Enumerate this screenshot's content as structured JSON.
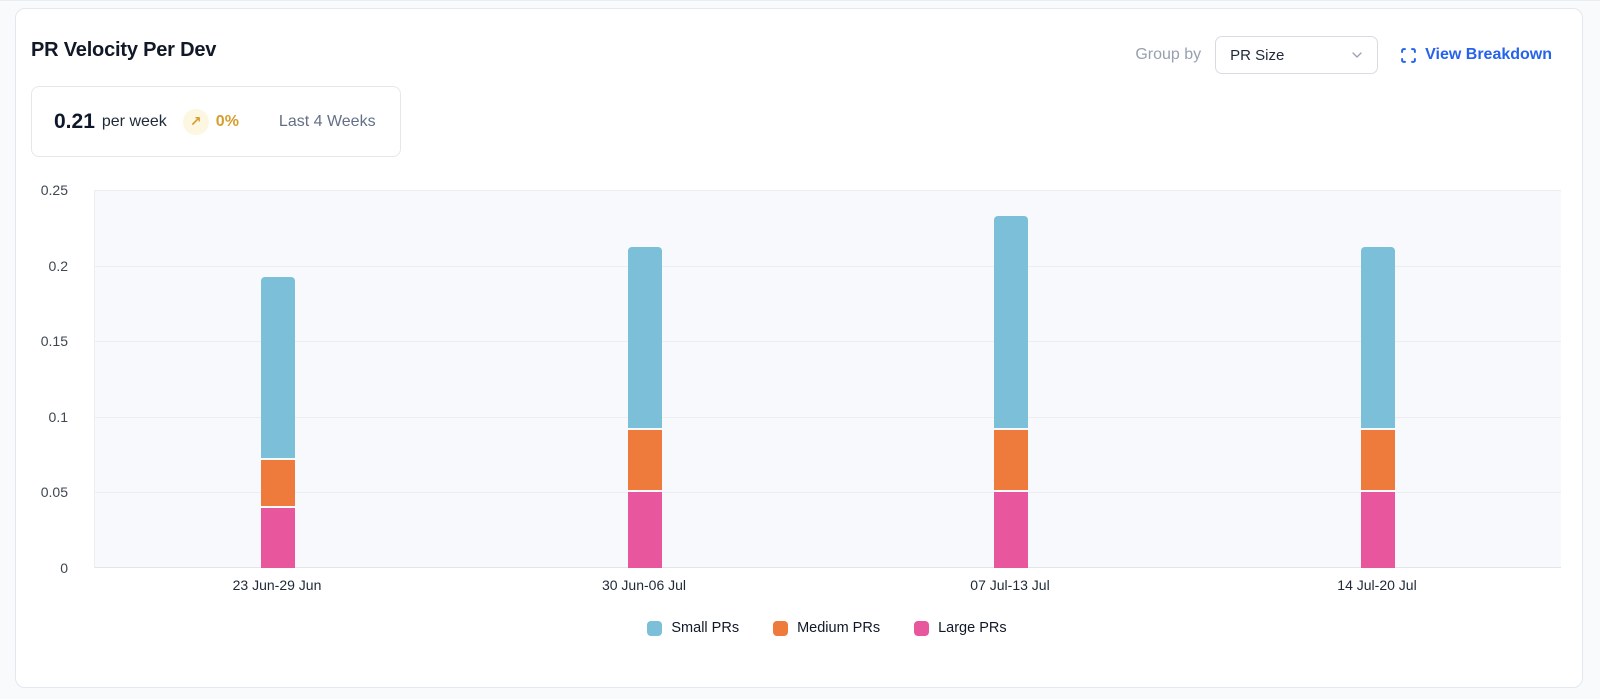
{
  "header": {
    "title": "PR Velocity Per Dev",
    "group_by_label": "Group by",
    "group_by_value": "PR Size",
    "view_breakdown_label": "View Breakdown",
    "accent_blue": "#2563eb"
  },
  "summary": {
    "value": "0.21",
    "unit": "per week",
    "trend_arrow": "↗",
    "trend_percent": "0%",
    "trend_color": "#d69e2e",
    "period": "Last 4 Weeks"
  },
  "chart_data": {
    "type": "bar",
    "stacked": true,
    "title": "PR Velocity Per Dev",
    "categories": [
      "23 Jun-29 Jun",
      "30 Jun-06 Jul",
      "07 Jul-13 Jul",
      "14 Jul-20 Jul"
    ],
    "series": [
      {
        "name": "Small PRs",
        "color": "#7bbfd9",
        "values": [
          0.12,
          0.12,
          0.14,
          0.12
        ]
      },
      {
        "name": "Medium PRs",
        "color": "#ee7a3b",
        "values": [
          0.03,
          0.04,
          0.04,
          0.04
        ]
      },
      {
        "name": "Large PRs",
        "color": "#e8569e",
        "values": [
          0.04,
          0.05,
          0.05,
          0.05
        ]
      }
    ],
    "stack_order_bottom_to_top": [
      "Large PRs",
      "Medium PRs",
      "Small PRs"
    ],
    "stack_totals": [
      0.19,
      0.21,
      0.23,
      0.21
    ],
    "xlabel": "",
    "ylabel": "",
    "ylim": [
      0,
      0.25
    ],
    "ytick_labels": [
      "0",
      "0.05",
      "0.1",
      "0.15",
      "0.2",
      "0.25"
    ],
    "grid": true,
    "legend_position": "bottom",
    "plot_bg": "#f7f9fc",
    "grid_color": "#eceef2"
  }
}
